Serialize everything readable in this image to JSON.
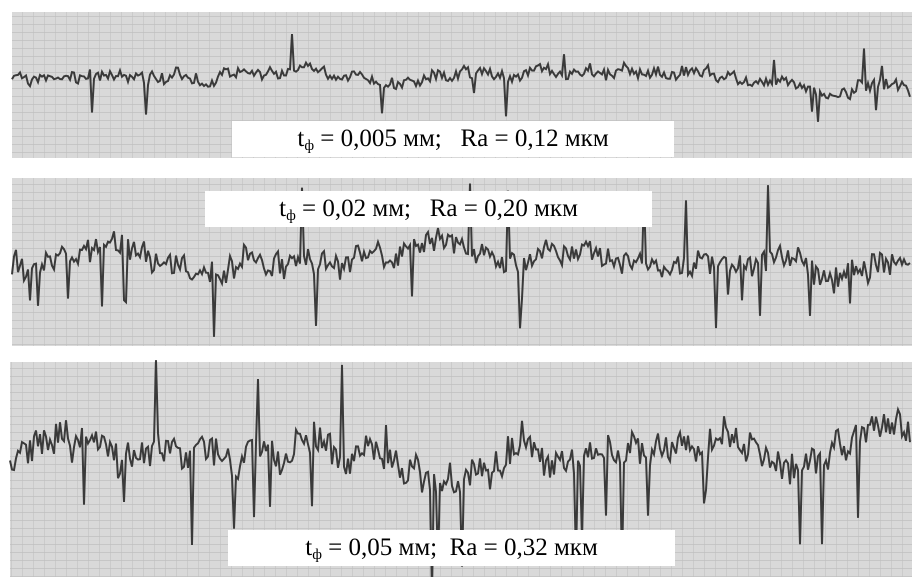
{
  "panels": [
    {
      "symbol": "t",
      "subscript": "ф",
      "text": " = 0,005 мм;   Ra = 0,12 мкм"
    },
    {
      "symbol": "t",
      "subscript": "ф",
      "text": " = 0,02 мм;   Ra = 0,20 мкм"
    },
    {
      "symbol": "t",
      "subscript": "ф",
      "text": " = 0,05 мм;  Ra = 0,32 мкм"
    }
  ]
}
